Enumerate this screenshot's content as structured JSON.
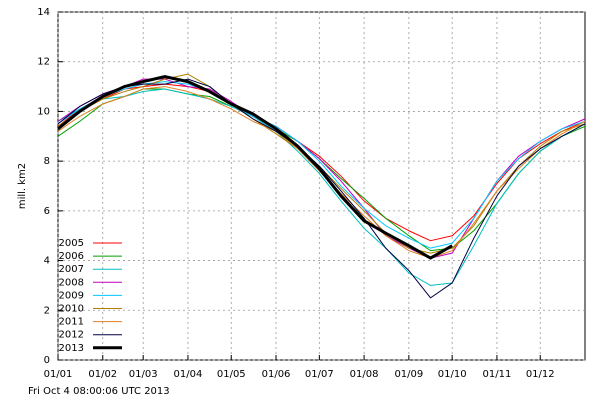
{
  "chart_data": {
    "type": "line",
    "ylabel": "mill. km2",
    "footer": "Fri Oct  4 08:00:06 UTC 2013",
    "x": [
      0,
      15,
      31,
      46,
      59,
      74,
      90,
      105,
      120,
      135,
      151,
      166,
      181,
      196,
      212,
      227,
      243,
      258,
      273,
      288,
      304,
      319,
      334,
      349,
      365
    ],
    "xlim": [
      0,
      365
    ],
    "xticks": [
      {
        "value": 0,
        "label": "01/01"
      },
      {
        "value": 31,
        "label": "01/02"
      },
      {
        "value": 59,
        "label": "01/03"
      },
      {
        "value": 90,
        "label": "01/04"
      },
      {
        "value": 120,
        "label": "01/05"
      },
      {
        "value": 151,
        "label": "01/06"
      },
      {
        "value": 181,
        "label": "01/07"
      },
      {
        "value": 212,
        "label": "01/08"
      },
      {
        "value": 243,
        "label": "01/09"
      },
      {
        "value": 273,
        "label": "01/10"
      },
      {
        "value": 304,
        "label": "01/11"
      },
      {
        "value": 334,
        "label": "01/12"
      }
    ],
    "ylim": [
      0,
      14
    ],
    "yticks": [
      0,
      2,
      4,
      6,
      8,
      10,
      12,
      14
    ],
    "grid": true,
    "legend": "lower-left",
    "series": [
      {
        "name": "2005",
        "color": "#ff0000",
        "values": [
          9.4,
          10.1,
          10.5,
          10.9,
          11.0,
          11.1,
          11.0,
          10.8,
          10.3,
          9.8,
          9.4,
          8.8,
          8.2,
          7.4,
          6.4,
          5.7,
          5.2,
          4.8,
          5.0,
          5.8,
          7.1,
          8.1,
          8.7,
          9.2,
          9.6
        ]
      },
      {
        "name": "2006",
        "color": "#00a000",
        "values": [
          9.0,
          9.6,
          10.3,
          10.6,
          10.9,
          10.9,
          10.7,
          10.6,
          10.2,
          9.8,
          9.3,
          8.8,
          8.1,
          7.3,
          6.5,
          5.7,
          5.0,
          4.4,
          4.5,
          5.2,
          6.3,
          7.5,
          8.4,
          9.0,
          9.4
        ]
      },
      {
        "name": "2007",
        "color": "#00c0c0",
        "values": [
          9.6,
          10.1,
          10.5,
          10.6,
          10.8,
          10.9,
          10.7,
          10.5,
          10.2,
          9.8,
          9.2,
          8.4,
          7.5,
          6.4,
          5.3,
          4.5,
          3.5,
          3.0,
          3.1,
          4.6,
          6.3,
          7.5,
          8.4,
          9.0,
          9.5
        ]
      },
      {
        "name": "2008",
        "color": "#c000c0",
        "values": [
          9.6,
          10.2,
          10.7,
          11.0,
          11.3,
          11.3,
          11.0,
          10.9,
          10.4,
          9.8,
          9.4,
          8.8,
          8.1,
          7.2,
          6.1,
          5.0,
          4.5,
          4.1,
          4.3,
          5.7,
          7.2,
          8.2,
          8.8,
          9.3,
          9.7
        ]
      },
      {
        "name": "2009",
        "color": "#00c8ff",
        "values": [
          9.5,
          10.1,
          10.6,
          10.9,
          11.1,
          11.2,
          11.1,
          10.8,
          10.3,
          9.8,
          9.4,
          8.8,
          8.0,
          7.0,
          6.1,
          5.4,
          4.9,
          4.5,
          4.7,
          5.7,
          7.2,
          8.1,
          8.8,
          9.3,
          9.6
        ]
      },
      {
        "name": "2010",
        "color": "#b08000",
        "values": [
          9.4,
          10.0,
          10.5,
          10.8,
          11.0,
          11.3,
          11.5,
          11.0,
          10.3,
          9.7,
          9.1,
          8.5,
          7.8,
          6.9,
          6.0,
          5.1,
          4.5,
          4.3,
          4.5,
          5.4,
          6.8,
          7.8,
          8.6,
          9.2,
          9.5
        ]
      },
      {
        "name": "2011",
        "color": "#e08020",
        "values": [
          9.2,
          9.8,
          10.3,
          10.6,
          10.9,
          11.0,
          10.8,
          10.5,
          10.1,
          9.6,
          9.2,
          8.5,
          7.6,
          6.7,
          5.8,
          5.0,
          4.4,
          4.1,
          4.4,
          5.5,
          6.8,
          7.7,
          8.5,
          9.1,
          9.6
        ]
      },
      {
        "name": "2012",
        "color": "#000040",
        "values": [
          9.5,
          10.2,
          10.7,
          11.0,
          11.1,
          11.1,
          11.3,
          11.0,
          10.3,
          9.7,
          9.2,
          8.6,
          7.8,
          6.8,
          5.7,
          4.5,
          3.6,
          2.5,
          3.1,
          4.9,
          6.6,
          7.8,
          8.5,
          9.0,
          9.5
        ]
      },
      {
        "name": "2013",
        "color": "#000000",
        "values": [
          9.3,
          10.0,
          10.6,
          11.0,
          11.2,
          11.4,
          11.2,
          10.8,
          10.3,
          9.9,
          9.3,
          8.6,
          7.7,
          6.6,
          5.6,
          5.1,
          4.6,
          4.1,
          4.6,
          null,
          null,
          null,
          null,
          null,
          null
        ]
      }
    ]
  }
}
